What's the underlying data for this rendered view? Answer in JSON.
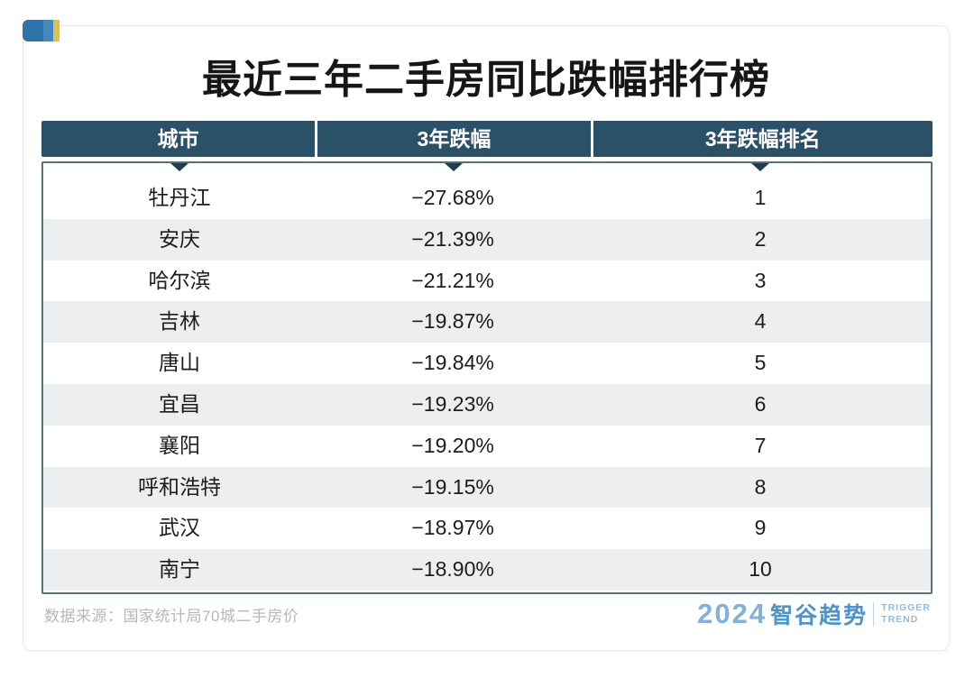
{
  "title": "最近三年二手房同比跌幅排行榜",
  "table": {
    "columns": [
      "城市",
      "3年跌幅",
      "3年跌幅排名"
    ],
    "rows": [
      {
        "city": "牡丹江",
        "drop": "−27.68%",
        "rank": "1"
      },
      {
        "city": "安庆",
        "drop": "−21.39%",
        "rank": "2"
      },
      {
        "city": "哈尔滨",
        "drop": "−21.21%",
        "rank": "3"
      },
      {
        "city": "吉林",
        "drop": "−19.87%",
        "rank": "4"
      },
      {
        "city": "唐山",
        "drop": "−19.84%",
        "rank": "5"
      },
      {
        "city": "宜昌",
        "drop": "−19.23%",
        "rank": "6"
      },
      {
        "city": "襄阳",
        "drop": "−19.20%",
        "rank": "7"
      },
      {
        "city": "呼和浩特",
        "drop": "−19.15%",
        "rank": "8"
      },
      {
        "city": "武汉",
        "drop": "−18.97%",
        "rank": "9"
      },
      {
        "city": "南宁",
        "drop": "−18.90%",
        "rank": "10"
      }
    ]
  },
  "footer": {
    "source": "数据来源：国家统计局70城二手房价",
    "logo": {
      "year": "2024",
      "brand": "智谷趋势",
      "tagline_line1": "TRIGGER",
      "tagline_line2": "TREND"
    }
  },
  "colors": {
    "header_bg": "#2b5168",
    "header_text": "#ffffff",
    "body_border": "#54727f",
    "marker": "#1c3e52",
    "row_alt_bg": "#eceef0",
    "text": "#1c1c1c",
    "source_text": "#b7b7b7",
    "logo_blue": "#4e93ca",
    "logo_light_blue": "#82b0da",
    "mark_dark_blue": "#2d74aa",
    "mark_light_blue": "#4389bf",
    "mark_yellow": "#ddc04f"
  },
  "chart_data": {
    "type": "table",
    "title": "最近三年二手房同比跌幅排行榜",
    "columns": [
      "城市",
      "3年跌幅",
      "3年跌幅排名"
    ],
    "rows": [
      [
        "牡丹江",
        -27.68,
        1
      ],
      [
        "安庆",
        -21.39,
        2
      ],
      [
        "哈尔滨",
        -21.21,
        3
      ],
      [
        "吉林",
        -19.87,
        4
      ],
      [
        "唐山",
        -19.84,
        5
      ],
      [
        "宜昌",
        -19.23,
        6
      ],
      [
        "襄阳",
        -19.2,
        7
      ],
      [
        "呼和浩特",
        -19.15,
        8
      ],
      [
        "武汉",
        -18.97,
        9
      ],
      [
        "南宁",
        -18.9,
        10
      ]
    ],
    "value_unit": "%",
    "source": "数据来源：国家统计局70城二手房价"
  }
}
